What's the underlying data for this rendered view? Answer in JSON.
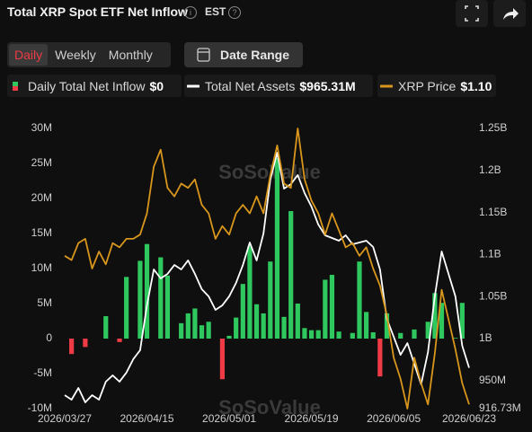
{
  "header": {
    "title": "Total XRP Spot ETF Net Inflow",
    "timezone": "EST"
  },
  "controls": {
    "tabs": [
      "Daily",
      "Weekly",
      "Monthly"
    ],
    "active_tab_index": 0,
    "date_range": "Date Range"
  },
  "chart_data": {
    "type": "combo",
    "watermark": "SoSoValue",
    "categories": [
      "2026/03/27",
      null,
      null,
      null,
      null,
      null,
      null,
      null,
      null,
      null,
      null,
      null,
      "2026/04/15",
      null,
      null,
      null,
      null,
      null,
      null,
      null,
      null,
      null,
      null,
      null,
      "2026/05/01",
      null,
      null,
      null,
      null,
      null,
      null,
      null,
      null,
      null,
      null,
      null,
      "2026/05/19",
      null,
      null,
      null,
      null,
      null,
      null,
      null,
      null,
      null,
      null,
      null,
      "2026/06/05",
      null,
      null,
      null,
      null,
      null,
      null,
      null,
      null,
      null,
      null,
      "2026/06/23"
    ],
    "ylim": [
      -10,
      30
    ],
    "yticks": [
      {
        "value": 30,
        "label": "30M"
      },
      {
        "value": 25,
        "label": "25M"
      },
      {
        "value": 20,
        "label": "20M"
      },
      {
        "value": 15,
        "label": "15M"
      },
      {
        "value": 10,
        "label": "10M"
      },
      {
        "value": 5,
        "label": "5M"
      },
      0,
      {
        "value": -5,
        "label": "-5M"
      },
      {
        "value": -10,
        "label": "-10M"
      }
    ],
    "y2lim": [
      916.73,
      1250
    ],
    "y2ticks": [
      {
        "value": 1250,
        "label": "1.25B"
      },
      {
        "value": 1200,
        "label": "1.2B"
      },
      {
        "value": 1150,
        "label": "1.15B"
      },
      {
        "value": 1100,
        "label": "1.1B"
      },
      {
        "value": 1050,
        "label": "1.05B"
      },
      {
        "value": 1000,
        "label": "1B"
      },
      {
        "value": 950,
        "label": "950M"
      },
      {
        "value": 916.73,
        "label": "916.73M"
      }
    ],
    "y3lim": [
      1.09,
      1.75
    ],
    "series": [
      {
        "name": "Daily Total Net Inflow",
        "type": "bar",
        "axis": "y",
        "legend_value": "$0",
        "color": "#2fc85f",
        "negative_color": "#ef3b45",
        "values": [
          0,
          -2.2,
          0,
          -1.2,
          0,
          0,
          3.2,
          0,
          -0.5,
          8.8,
          0,
          11.1,
          13.5,
          0,
          11.6,
          9,
          0,
          2.2,
          3.6,
          4.3,
          1.9,
          2.4,
          0,
          -5.8,
          0.4,
          3,
          7.8,
          13.2,
          4.9,
          3.6,
          11,
          25.8,
          3.1,
          18.2,
          5,
          1.5,
          1.2,
          1.2,
          8.4,
          9.1,
          1,
          0,
          0.8,
          11,
          3.8,
          0.9,
          -5.4,
          3.6,
          0,
          0.8,
          0,
          1.3,
          0,
          2.4,
          6.5,
          5.1,
          0,
          0.1,
          5.1,
          0
        ]
      },
      {
        "name": "Total Net Assets",
        "type": "line",
        "axis": "y2",
        "legend_value": "$965.31M",
        "color": "#ffffff",
        "values": [
          932.7,
          927.4,
          941.3,
          924.2,
          932.7,
          927.4,
          948.8,
          956.3,
          948.8,
          959.5,
          975.5,
          986.2,
          1039.6,
          1082.3,
          1071.6,
          1077,
          1087.6,
          1082.3,
          1093,
          1077,
          1058.8,
          1050.3,
          1034.2,
          1039.6,
          1050.3,
          1066.3,
          1087.6,
          1114.3,
          1093,
          1125,
          1189.1,
          1221.2,
          1178.4,
          1183.8,
          1194.5,
          1173.1,
          1157,
          1135.7,
          1122.9,
          1119.7,
          1116.5,
          1122.9,
          1112.2,
          1114.3,
          1116.5,
          1109,
          1082.3,
          1023.5,
          1002.2,
          980.8,
          994.7,
          970.1,
          945.6,
          984,
          1050.3,
          1103.7,
          1077,
          1050.3,
          991.5,
          965.31
        ]
      },
      {
        "name": "XRP Price",
        "type": "line",
        "axis": "y3",
        "legend_value": "$1.10",
        "color": "#d8961c",
        "values": [
          1.45,
          1.44,
          1.48,
          1.49,
          1.42,
          1.46,
          1.43,
          1.48,
          1.47,
          1.49,
          1.49,
          1.5,
          1.55,
          1.66,
          1.7,
          1.61,
          1.59,
          1.62,
          1.61,
          1.63,
          1.57,
          1.55,
          1.49,
          1.52,
          1.5,
          1.55,
          1.57,
          1.55,
          1.59,
          1.55,
          1.64,
          1.71,
          1.62,
          1.61,
          1.75,
          1.63,
          1.58,
          1.55,
          1.5,
          1.55,
          1.51,
          1.47,
          1.48,
          1.45,
          1.47,
          1.42,
          1.38,
          1.31,
          1.21,
          1.16,
          1.09,
          1.21,
          1.15,
          1.1,
          1.22,
          1.37,
          1.3,
          1.23,
          1.15,
          1.1
        ]
      }
    ]
  }
}
